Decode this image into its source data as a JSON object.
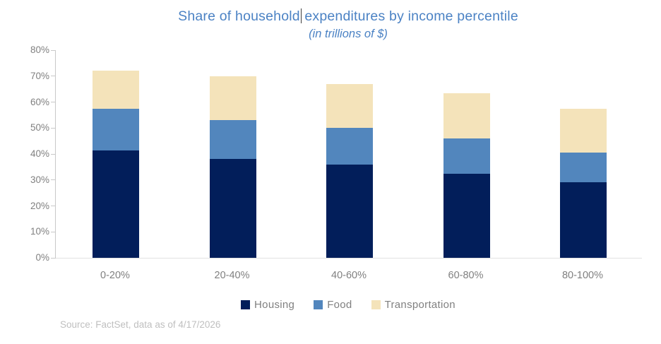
{
  "chart_data": {
    "type": "bar",
    "stacked": true,
    "title": "Share of household expenditures by income percentile",
    "title_left": "Share of household",
    "title_right": "expenditures by income percentile",
    "subtitle": "(in trillions of $)",
    "categories": [
      "0-20%",
      "20-40%",
      "40-60%",
      "60-80%",
      "80-100%"
    ],
    "series": [
      {
        "name": "Housing",
        "color": "#021E5A",
        "values": [
          41.5,
          38.0,
          36.0,
          32.5,
          29.0
        ]
      },
      {
        "name": "Food",
        "color": "#5286BD",
        "values": [
          16.0,
          15.0,
          14.0,
          13.5,
          11.5
        ]
      },
      {
        "name": "Transportation",
        "color": "#F4E3BA",
        "values": [
          14.5,
          17.0,
          17.0,
          17.5,
          17.0
        ]
      }
    ],
    "totals": [
      72.0,
      70.0,
      67.0,
      63.5,
      57.5
    ],
    "y_ticks": [
      "0%",
      "10%",
      "20%",
      "30%",
      "40%",
      "50%",
      "60%",
      "70%",
      "80%"
    ],
    "ylim": [
      0,
      80
    ],
    "grid": false,
    "legend_position": "bottom",
    "title_color": "#4B82C4",
    "axis_label_color": "#808080",
    "axis_line_color": "#C9C9C9"
  },
  "source_note": "Source: FactSet, data as of 4/17/2026"
}
